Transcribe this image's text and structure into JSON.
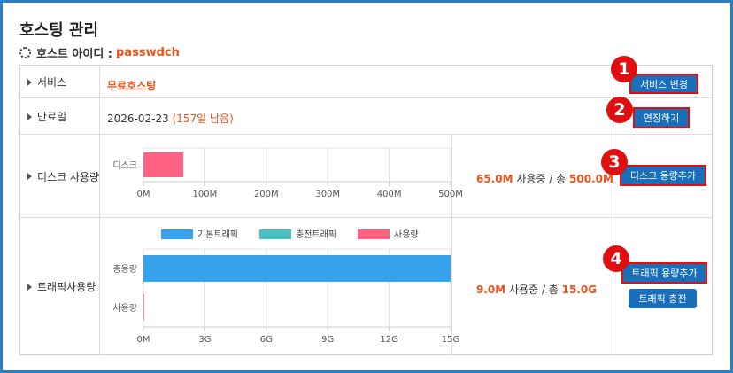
{
  "page": {
    "title": "호스팅 관리"
  },
  "host": {
    "label": "호스트 아이디 :",
    "id": "passwdch"
  },
  "rows": {
    "service": {
      "label": "서비스",
      "value": "무료호스팅",
      "button": "서비스 변경",
      "badge": "1"
    },
    "expiry": {
      "label": "만료일",
      "date": "2026-02-23",
      "remaining": "(157일 남음)",
      "button": "연장하기",
      "badge": "2"
    },
    "disk": {
      "label": "디스크 사용량",
      "used": "65.0M",
      "used_suffix": " 사용중 / 총 ",
      "total": "500.0M",
      "button": "디스크 용량추가",
      "badge": "3"
    },
    "traffic": {
      "label": "트래픽사용량",
      "used": "9.0M",
      "used_suffix": " 사용중 / 총 ",
      "total": "15.0G",
      "button": "트래픽 용량추가",
      "button2": "트래픽 충전",
      "badge": "4"
    }
  },
  "colors": {
    "accent": "#e8541c",
    "button": "#1a6fba",
    "highlight": "#e01010",
    "disk_bar": "#ff6384",
    "traffic_base": "#36a2eb",
    "traffic_charge": "#4bc0c0",
    "traffic_used": "#ff6384",
    "frame": "#2a7fc4"
  },
  "chart_data": [
    {
      "type": "bar",
      "orientation": "horizontal",
      "title": "",
      "categories": [
        "디스크"
      ],
      "values": [
        65
      ],
      "unit": "M",
      "xlim": [
        0,
        500
      ],
      "xticks": [
        "0M",
        "100M",
        "200M",
        "300M",
        "400M",
        "500M"
      ],
      "tick_values": [
        0,
        100,
        200,
        300,
        400,
        500
      ],
      "grid": true
    },
    {
      "type": "bar",
      "orientation": "horizontal",
      "title": "",
      "categories": [
        "총용량",
        "사용량"
      ],
      "series": [
        {
          "name": "기본트래픽",
          "color": "#36a2eb",
          "values": [
            15,
            0
          ]
        },
        {
          "name": "충전트래픽",
          "color": "#4bc0c0",
          "values": [
            0,
            0
          ]
        },
        {
          "name": "사용량",
          "color": "#ff6384",
          "values": [
            0,
            0.009
          ]
        }
      ],
      "unit": "G",
      "xlim": [
        0,
        15
      ],
      "xticks": [
        "0M",
        "3G",
        "6G",
        "9G",
        "12G",
        "15G"
      ],
      "tick_values": [
        0,
        3,
        6,
        9,
        12,
        15
      ],
      "legend": "top",
      "grid": true
    }
  ]
}
